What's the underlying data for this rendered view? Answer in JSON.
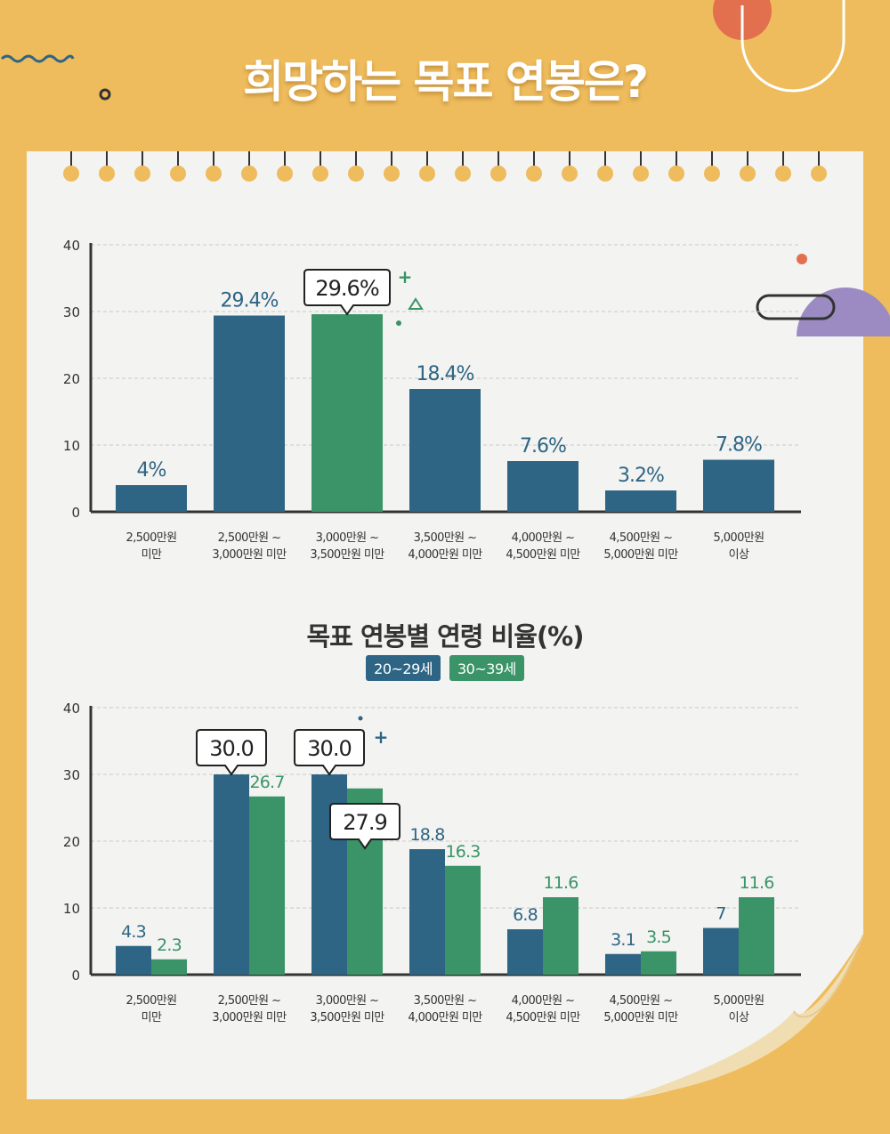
{
  "page": {
    "title": "희망하는 목표 연봉은?"
  },
  "colors": {
    "background": "#eebc5c",
    "blue": "#2e6585",
    "green": "#3a9467",
    "axis": "#333333",
    "grid": "#c8c8c8",
    "paper": "#f3f3f1"
  },
  "chart_data": [
    {
      "type": "bar",
      "title": "",
      "categories": [
        [
          "2,500만원",
          "미만"
        ],
        [
          "2,500만원 ~",
          "3,000만원 미만"
        ],
        [
          "3,000만원 ~",
          "3,500만원 미만"
        ],
        [
          "3,500만원 ~",
          "4,000만원 미만"
        ],
        [
          "4,000만원 ~",
          "4,500만원 미만"
        ],
        [
          "4,500만원 ~",
          "5,000만원 미만"
        ],
        [
          "5,000만원",
          "이상"
        ]
      ],
      "values": [
        4,
        29.4,
        29.6,
        18.4,
        7.6,
        3.2,
        7.8
      ],
      "value_labels": [
        "4%",
        "29.4%",
        "29.6%",
        "18.4%",
        "7.6%",
        "3.2%",
        "7.8%"
      ],
      "highlight_index": 2,
      "ylim": [
        0,
        40
      ],
      "yticks": [
        "0",
        "10",
        "20",
        "30",
        "40"
      ],
      "grid": true
    },
    {
      "type": "bar",
      "title": "목표 연봉별 연령 비율(%)",
      "legend": [
        "20~29세",
        "30~39세"
      ],
      "categories": [
        [
          "2,500만원",
          "미만"
        ],
        [
          "2,500만원 ~",
          "3,000만원 미만"
        ],
        [
          "3,000만원 ~",
          "3,500만원 미만"
        ],
        [
          "3,500만원 ~",
          "4,000만원 미만"
        ],
        [
          "4,000만원 ~",
          "4,500만원 미만"
        ],
        [
          "4,500만원 ~",
          "5,000만원 미만"
        ],
        [
          "5,000만원",
          "이상"
        ]
      ],
      "series": [
        {
          "name": "20~29세",
          "values": [
            4.3,
            30.0,
            30.0,
            18.8,
            6.8,
            3.1,
            7
          ],
          "labels": [
            "4.3",
            "30.0",
            "30.0",
            "18.8",
            "6.8",
            "3.1",
            "7"
          ],
          "callouts": [
            1,
            2
          ]
        },
        {
          "name": "30~39세",
          "values": [
            2.3,
            26.7,
            27.9,
            16.3,
            11.6,
            3.5,
            11.6
          ],
          "labels": [
            "2.3",
            "26.7",
            "27.9",
            "16.3",
            "11.6",
            "3.5",
            "11.6"
          ],
          "callouts": [
            2
          ]
        }
      ],
      "ylim": [
        0,
        40
      ],
      "yticks": [
        "0",
        "10",
        "20",
        "30",
        "40"
      ],
      "grid": true
    }
  ]
}
